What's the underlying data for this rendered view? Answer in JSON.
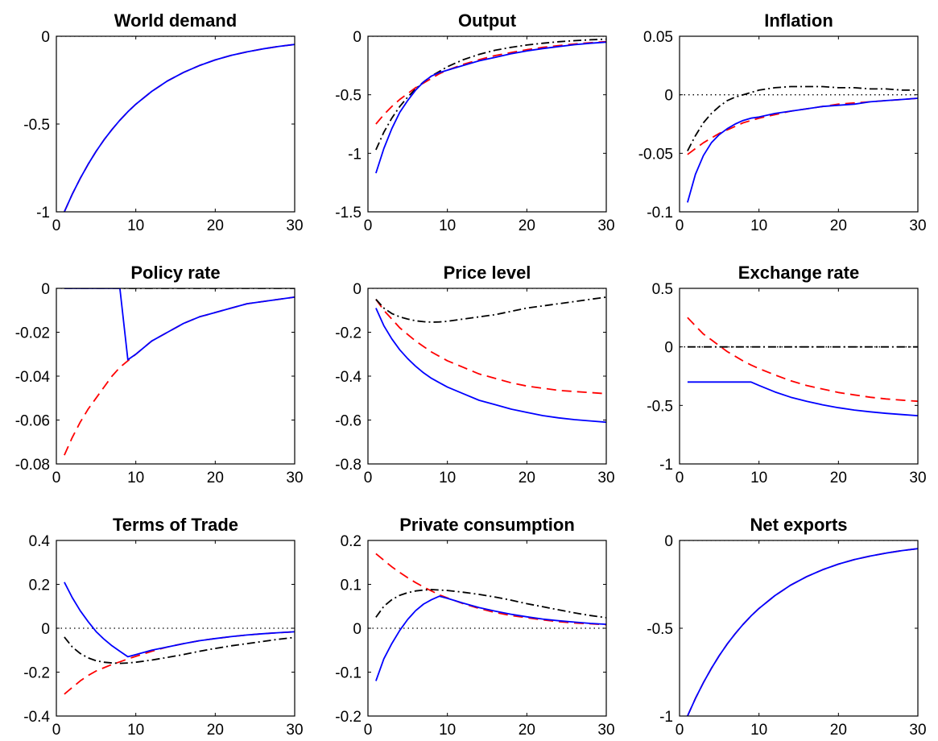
{
  "figure": {
    "colors": {
      "blue": "#0000ff",
      "red": "#ff0000",
      "black": "#000000",
      "zero_line": "#000000"
    },
    "styles": {
      "blue": "solid",
      "red": "dashed",
      "black": "dashdot"
    }
  },
  "chart_data": [
    {
      "id": "world-demand",
      "type": "line",
      "title": "World demand",
      "xlim": [
        0,
        30
      ],
      "ylim": [
        -1,
        0
      ],
      "xticks": [
        0,
        10,
        20,
        30
      ],
      "xtick_labels": [
        "0",
        "10",
        "20",
        "30"
      ],
      "yticks": [
        -1,
        -0.5,
        0
      ],
      "ytick_labels": [
        "-1",
        "-0.5",
        "0"
      ],
      "zero_line": true,
      "x": [
        1,
        2,
        3,
        4,
        5,
        6,
        7,
        8,
        9,
        10,
        12,
        14,
        16,
        18,
        20,
        22,
        24,
        26,
        28,
        30
      ],
      "series": [
        {
          "color": "red",
          "style": "dashed",
          "values": [
            -1.0,
            -0.9,
            -0.81,
            -0.729,
            -0.656,
            -0.59,
            -0.531,
            -0.478,
            -0.43,
            -0.387,
            -0.314,
            -0.254,
            -0.206,
            -0.167,
            -0.135,
            -0.109,
            -0.089,
            -0.072,
            -0.058,
            -0.047
          ]
        },
        {
          "color": "blue",
          "style": "solid",
          "values": [
            -1.0,
            -0.9,
            -0.81,
            -0.729,
            -0.656,
            -0.59,
            -0.531,
            -0.478,
            -0.43,
            -0.387,
            -0.314,
            -0.254,
            -0.206,
            -0.167,
            -0.135,
            -0.109,
            -0.089,
            -0.072,
            -0.058,
            -0.047
          ]
        }
      ]
    },
    {
      "id": "output",
      "type": "line",
      "title": "Output",
      "xlim": [
        0,
        30
      ],
      "ylim": [
        -1.5,
        0
      ],
      "xticks": [
        0,
        10,
        20,
        30
      ],
      "xtick_labels": [
        "0",
        "10",
        "20",
        "30"
      ],
      "yticks": [
        -1.5,
        -1,
        -0.5,
        0
      ],
      "ytick_labels": [
        "-1.5",
        "-1",
        "-0.5",
        "0"
      ],
      "zero_line": true,
      "x": [
        1,
        2,
        3,
        4,
        5,
        6,
        7,
        8,
        9,
        10,
        12,
        14,
        16,
        18,
        20,
        22,
        24,
        26,
        28,
        30
      ],
      "series": [
        {
          "color": "red",
          "style": "dashed",
          "values": [
            -0.75,
            -0.67,
            -0.6,
            -0.54,
            -0.49,
            -0.44,
            -0.4,
            -0.36,
            -0.32,
            -0.29,
            -0.24,
            -0.2,
            -0.165,
            -0.14,
            -0.115,
            -0.095,
            -0.08,
            -0.066,
            -0.055,
            -0.046
          ]
        },
        {
          "color": "black",
          "style": "dashdot",
          "values": [
            -0.97,
            -0.82,
            -0.7,
            -0.6,
            -0.52,
            -0.45,
            -0.39,
            -0.34,
            -0.3,
            -0.26,
            -0.2,
            -0.155,
            -0.12,
            -0.095,
            -0.075,
            -0.06,
            -0.047,
            -0.038,
            -0.03,
            -0.025
          ]
        },
        {
          "color": "blue",
          "style": "solid",
          "values": [
            -1.17,
            -0.96,
            -0.79,
            -0.65,
            -0.55,
            -0.46,
            -0.39,
            -0.34,
            -0.31,
            -0.29,
            -0.25,
            -0.21,
            -0.18,
            -0.15,
            -0.125,
            -0.105,
            -0.088,
            -0.072,
            -0.06,
            -0.05
          ]
        }
      ]
    },
    {
      "id": "inflation",
      "type": "line",
      "title": "Inflation",
      "xlim": [
        0,
        30
      ],
      "ylim": [
        -0.1,
        0.05
      ],
      "xticks": [
        0,
        10,
        20,
        30
      ],
      "xtick_labels": [
        "0",
        "10",
        "20",
        "30"
      ],
      "yticks": [
        -0.1,
        -0.05,
        0,
        0.05
      ],
      "ytick_labels": [
        "-0.1",
        "-0.05",
        "0",
        "0.05"
      ],
      "zero_line": true,
      "x": [
        1,
        2,
        3,
        4,
        5,
        6,
        7,
        8,
        9,
        10,
        12,
        14,
        16,
        18,
        20,
        22,
        24,
        26,
        28,
        30
      ],
      "series": [
        {
          "color": "red",
          "style": "dashed",
          "values": [
            -0.051,
            -0.046,
            -0.041,
            -0.037,
            -0.033,
            -0.03,
            -0.027,
            -0.024,
            -0.022,
            -0.02,
            -0.017,
            -0.014,
            -0.012,
            -0.01,
            -0.008,
            -0.007,
            -0.006,
            -0.005,
            -0.004,
            -0.003
          ]
        },
        {
          "color": "black",
          "style": "dashdot",
          "values": [
            -0.048,
            -0.035,
            -0.024,
            -0.016,
            -0.01,
            -0.005,
            -0.002,
            0.0,
            0.002,
            0.004,
            0.006,
            0.007,
            0.007,
            0.007,
            0.006,
            0.006,
            0.005,
            0.005,
            0.004,
            0.004
          ]
        },
        {
          "color": "blue",
          "style": "solid",
          "values": [
            -0.092,
            -0.068,
            -0.052,
            -0.041,
            -0.034,
            -0.029,
            -0.025,
            -0.022,
            -0.02,
            -0.019,
            -0.016,
            -0.014,
            -0.012,
            -0.01,
            -0.009,
            -0.008,
            -0.006,
            -0.005,
            -0.004,
            -0.003
          ]
        }
      ]
    },
    {
      "id": "policy-rate",
      "type": "line",
      "title": "Policy rate",
      "xlim": [
        0,
        30
      ],
      "ylim": [
        -0.08,
        0
      ],
      "xticks": [
        0,
        10,
        20,
        30
      ],
      "xtick_labels": [
        "0",
        "10",
        "20",
        "30"
      ],
      "yticks": [
        -0.08,
        -0.06,
        -0.04,
        -0.02,
        0
      ],
      "ytick_labels": [
        "-0.08",
        "-0.06",
        "-0.04",
        "-0.02",
        "0"
      ],
      "zero_line": true,
      "x": [
        1,
        2,
        3,
        4,
        5,
        6,
        7,
        8,
        9,
        10,
        12,
        14,
        16,
        18,
        20,
        22,
        24,
        26,
        28,
        30
      ],
      "series": [
        {
          "color": "red",
          "style": "dashed",
          "values": [
            -0.076,
            -0.068,
            -0.061,
            -0.055,
            -0.05,
            -0.045,
            -0.04,
            -0.036,
            -0.033,
            -0.03,
            -0.024,
            -0.02,
            -0.016,
            -0.013,
            -0.011,
            -0.009,
            -0.007,
            -0.006,
            -0.005,
            -0.004
          ]
        },
        {
          "color": "black",
          "style": "dashdot",
          "values": [
            0,
            0,
            0,
            0,
            0,
            0,
            0,
            0,
            0,
            0,
            0,
            0,
            0,
            0,
            0,
            0,
            0,
            0,
            0,
            0
          ]
        },
        {
          "color": "blue",
          "style": "solid",
          "values": [
            0,
            0,
            0,
            0,
            0,
            0,
            0,
            0,
            -0.0325,
            -0.03,
            -0.024,
            -0.02,
            -0.016,
            -0.013,
            -0.011,
            -0.009,
            -0.007,
            -0.006,
            -0.005,
            -0.004
          ]
        }
      ]
    },
    {
      "id": "price-level",
      "type": "line",
      "title": "Price level",
      "xlim": [
        0,
        30
      ],
      "ylim": [
        -0.8,
        0
      ],
      "xticks": [
        0,
        10,
        20,
        30
      ],
      "xtick_labels": [
        "0",
        "10",
        "20",
        "30"
      ],
      "yticks": [
        -0.8,
        -0.6,
        -0.4,
        -0.2,
        0
      ],
      "ytick_labels": [
        "-0.8",
        "-0.6",
        "-0.4",
        "-0.2",
        "0"
      ],
      "zero_line": true,
      "x": [
        1,
        2,
        3,
        4,
        5,
        6,
        7,
        8,
        9,
        10,
        12,
        14,
        16,
        18,
        20,
        22,
        24,
        26,
        28,
        30
      ],
      "series": [
        {
          "color": "red",
          "style": "dashed",
          "values": [
            -0.05,
            -0.1,
            -0.14,
            -0.18,
            -0.21,
            -0.24,
            -0.265,
            -0.29,
            -0.31,
            -0.33,
            -0.36,
            -0.39,
            -0.41,
            -0.43,
            -0.445,
            -0.455,
            -0.465,
            -0.47,
            -0.475,
            -0.48
          ]
        },
        {
          "color": "black",
          "style": "dashdot",
          "values": [
            -0.05,
            -0.09,
            -0.115,
            -0.13,
            -0.14,
            -0.148,
            -0.152,
            -0.154,
            -0.153,
            -0.15,
            -0.14,
            -0.13,
            -0.12,
            -0.105,
            -0.09,
            -0.08,
            -0.07,
            -0.06,
            -0.05,
            -0.04
          ]
        },
        {
          "color": "blue",
          "style": "solid",
          "values": [
            -0.09,
            -0.17,
            -0.23,
            -0.28,
            -0.32,
            -0.355,
            -0.385,
            -0.41,
            -0.43,
            -0.45,
            -0.48,
            -0.51,
            -0.53,
            -0.55,
            -0.565,
            -0.58,
            -0.59,
            -0.598,
            -0.604,
            -0.61
          ]
        }
      ]
    },
    {
      "id": "exchange-rate",
      "type": "line",
      "title": "Exchange rate",
      "xlim": [
        0,
        30
      ],
      "ylim": [
        -1,
        0.5
      ],
      "xticks": [
        0,
        10,
        20,
        30
      ],
      "xtick_labels": [
        "0",
        "10",
        "20",
        "30"
      ],
      "yticks": [
        -1,
        -0.5,
        0,
        0.5
      ],
      "ytick_labels": [
        "-1",
        "-0.5",
        "0",
        "0.5"
      ],
      "zero_line": true,
      "x": [
        1,
        2,
        3,
        4,
        5,
        6,
        7,
        8,
        9,
        10,
        12,
        14,
        16,
        18,
        20,
        22,
        24,
        26,
        28,
        30
      ],
      "series": [
        {
          "color": "red",
          "style": "dashed",
          "values": [
            0.25,
            0.18,
            0.11,
            0.06,
            0.01,
            -0.04,
            -0.08,
            -0.12,
            -0.155,
            -0.185,
            -0.24,
            -0.29,
            -0.33,
            -0.36,
            -0.39,
            -0.41,
            -0.43,
            -0.445,
            -0.455,
            -0.465
          ]
        },
        {
          "color": "black",
          "style": "dashdot",
          "values": [
            0,
            0,
            0,
            0,
            0,
            0,
            0,
            0,
            0,
            0,
            0,
            0,
            0,
            0,
            0,
            0,
            0,
            0,
            0,
            0
          ]
        },
        {
          "color": "blue",
          "style": "solid",
          "values": [
            -0.3,
            -0.3,
            -0.3,
            -0.3,
            -0.3,
            -0.3,
            -0.3,
            -0.3,
            -0.3,
            -0.33,
            -0.385,
            -0.43,
            -0.465,
            -0.495,
            -0.52,
            -0.54,
            -0.555,
            -0.568,
            -0.578,
            -0.588
          ]
        }
      ]
    },
    {
      "id": "terms-of-trade",
      "type": "line",
      "title": "Terms of Trade",
      "xlim": [
        0,
        30
      ],
      "ylim": [
        -0.4,
        0.4
      ],
      "xticks": [
        0,
        10,
        20,
        30
      ],
      "xtick_labels": [
        "0",
        "10",
        "20",
        "30"
      ],
      "yticks": [
        -0.4,
        -0.2,
        0,
        0.2,
        0.4
      ],
      "ytick_labels": [
        "-0.4",
        "-0.2",
        "0",
        "0.2",
        "0.4"
      ],
      "zero_line": true,
      "x": [
        1,
        2,
        3,
        4,
        5,
        6,
        7,
        8,
        9,
        10,
        12,
        14,
        16,
        18,
        20,
        22,
        24,
        26,
        28,
        30
      ],
      "series": [
        {
          "color": "red",
          "style": "dashed",
          "values": [
            -0.3,
            -0.27,
            -0.24,
            -0.215,
            -0.195,
            -0.18,
            -0.165,
            -0.153,
            -0.14,
            -0.128,
            -0.105,
            -0.085,
            -0.07,
            -0.057,
            -0.047,
            -0.038,
            -0.031,
            -0.025,
            -0.02,
            -0.016
          ]
        },
        {
          "color": "black",
          "style": "dashdot",
          "values": [
            -0.04,
            -0.085,
            -0.115,
            -0.135,
            -0.148,
            -0.155,
            -0.158,
            -0.16,
            -0.158,
            -0.155,
            -0.145,
            -0.133,
            -0.12,
            -0.105,
            -0.092,
            -0.08,
            -0.07,
            -0.06,
            -0.05,
            -0.042
          ]
        },
        {
          "color": "blue",
          "style": "solid",
          "values": [
            0.21,
            0.14,
            0.08,
            0.03,
            -0.015,
            -0.05,
            -0.08,
            -0.105,
            -0.13,
            -0.12,
            -0.1,
            -0.085,
            -0.07,
            -0.057,
            -0.047,
            -0.038,
            -0.031,
            -0.025,
            -0.02,
            -0.016
          ]
        }
      ]
    },
    {
      "id": "private-consumption",
      "type": "line",
      "title": "Private consumption",
      "xlim": [
        0,
        30
      ],
      "ylim": [
        -0.2,
        0.2
      ],
      "xticks": [
        0,
        10,
        20,
        30
      ],
      "xtick_labels": [
        "0",
        "10",
        "20",
        "30"
      ],
      "yticks": [
        -0.2,
        -0.1,
        0,
        0.1,
        0.2
      ],
      "ytick_labels": [
        "-0.2",
        "-0.1",
        "0",
        "0.1",
        "0.2"
      ],
      "zero_line": true,
      "x": [
        1,
        2,
        3,
        4,
        5,
        6,
        7,
        8,
        9,
        10,
        12,
        14,
        16,
        18,
        20,
        22,
        24,
        26,
        28,
        30
      ],
      "series": [
        {
          "color": "red",
          "style": "dashed",
          "values": [
            0.17,
            0.155,
            0.14,
            0.127,
            0.115,
            0.104,
            0.094,
            0.085,
            0.076,
            0.069,
            0.056,
            0.045,
            0.036,
            0.029,
            0.024,
            0.019,
            0.015,
            0.012,
            0.01,
            0.008
          ]
        },
        {
          "color": "black",
          "style": "dashdot",
          "values": [
            0.025,
            0.05,
            0.065,
            0.075,
            0.081,
            0.085,
            0.087,
            0.088,
            0.087,
            0.086,
            0.082,
            0.077,
            0.071,
            0.064,
            0.056,
            0.049,
            0.042,
            0.035,
            0.029,
            0.024
          ]
        },
        {
          "color": "blue",
          "style": "solid",
          "values": [
            -0.12,
            -0.07,
            -0.035,
            -0.005,
            0.02,
            0.04,
            0.055,
            0.065,
            0.073,
            0.068,
            0.057,
            0.047,
            0.039,
            0.032,
            0.026,
            0.021,
            0.017,
            0.014,
            0.011,
            0.009
          ]
        }
      ]
    },
    {
      "id": "net-exports",
      "type": "line",
      "title": "Net exports",
      "xlim": [
        0,
        30
      ],
      "ylim": [
        -1,
        0
      ],
      "xticks": [
        0,
        10,
        20,
        30
      ],
      "xtick_labels": [
        "0",
        "10",
        "20",
        "30"
      ],
      "yticks": [
        -1,
        -0.5,
        0
      ],
      "ytick_labels": [
        "-1",
        "-0.5",
        "0"
      ],
      "zero_line": true,
      "x": [
        1,
        2,
        3,
        4,
        5,
        6,
        7,
        8,
        9,
        10,
        12,
        14,
        16,
        18,
        20,
        22,
        24,
        26,
        28,
        30
      ],
      "series": [
        {
          "color": "red",
          "style": "dashed",
          "values": [
            -1.0,
            -0.9,
            -0.81,
            -0.729,
            -0.656,
            -0.59,
            -0.531,
            -0.478,
            -0.43,
            -0.387,
            -0.314,
            -0.254,
            -0.206,
            -0.167,
            -0.135,
            -0.109,
            -0.089,
            -0.072,
            -0.058,
            -0.047
          ]
        },
        {
          "color": "blue",
          "style": "solid",
          "values": [
            -1.0,
            -0.9,
            -0.81,
            -0.729,
            -0.656,
            -0.59,
            -0.531,
            -0.478,
            -0.43,
            -0.387,
            -0.314,
            -0.254,
            -0.206,
            -0.167,
            -0.135,
            -0.109,
            -0.089,
            -0.072,
            -0.058,
            -0.047
          ]
        }
      ]
    }
  ]
}
